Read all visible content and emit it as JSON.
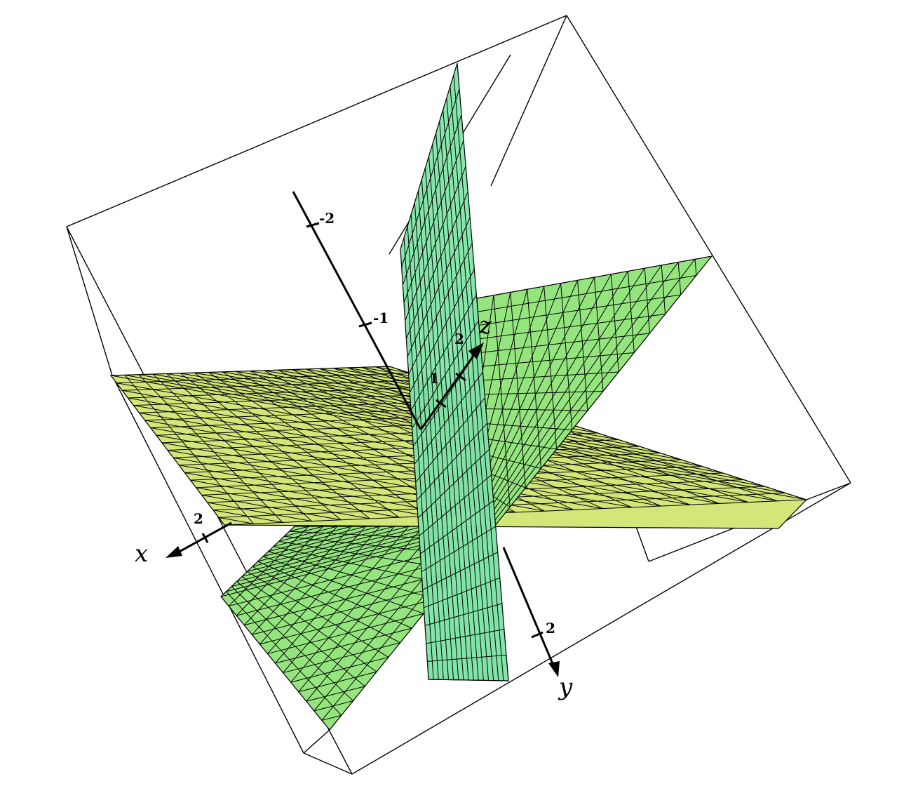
{
  "axes": {
    "x": {
      "name": "x",
      "ticks": [
        "2"
      ]
    },
    "y": {
      "name": "y",
      "ticks": [
        "2"
      ]
    },
    "z": {
      "name": "z",
      "ticks": [
        "-2",
        "-1",
        "1",
        "2"
      ]
    }
  },
  "colors": {
    "horizontal_plane": "#d2e67a",
    "tilted_plane": "#95e57f",
    "vertical_plane": "#82e5a8",
    "grid_lines": "#000000",
    "box": "#000000"
  }
}
